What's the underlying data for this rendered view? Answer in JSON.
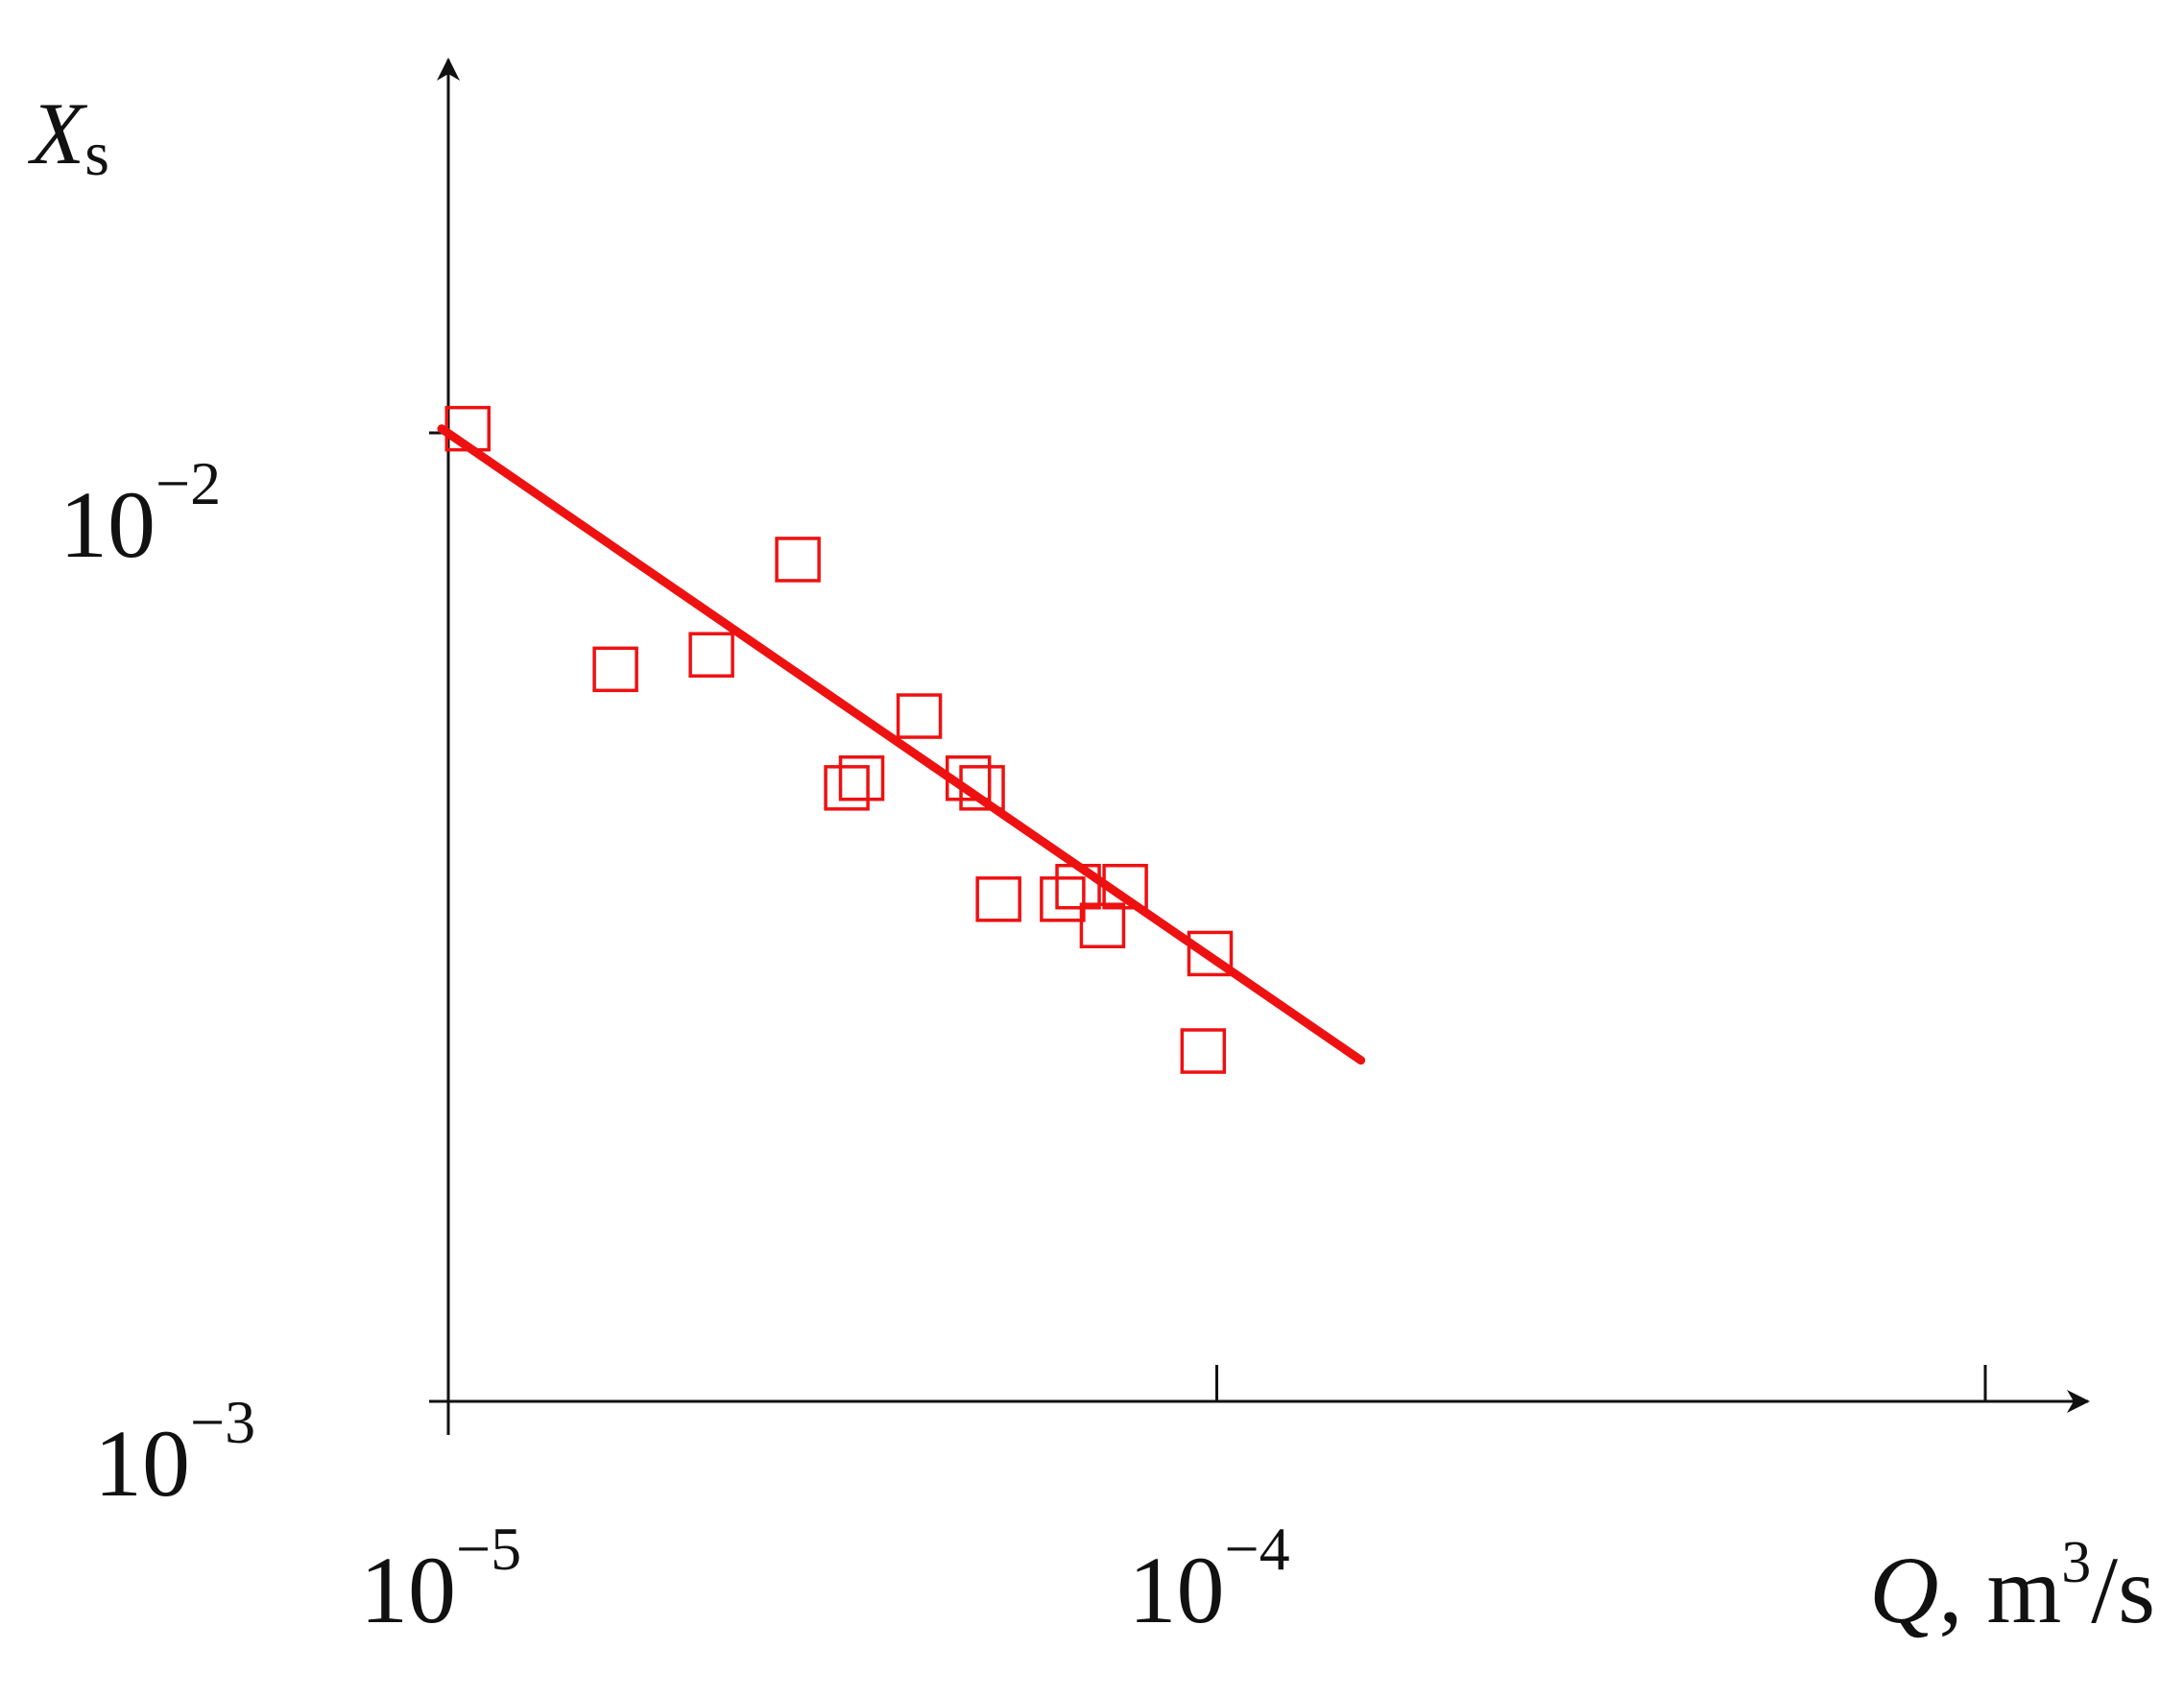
{
  "chart_data": {
    "type": "scatter",
    "title": "",
    "xlabel": {
      "symbol": "Q",
      "comma": ",",
      "unit_base": " m",
      "unit_sup": "3",
      "unit_tail": "/s"
    },
    "ylabel": {
      "symbol": "X",
      "subscript": "s"
    },
    "x_scale": "log",
    "y_scale": "log",
    "xlim": [
      1e-05,
      0.001
    ],
    "ylim": [
      0.001,
      0.0115
    ],
    "x_ticks": [
      {
        "value": 1e-05,
        "base": "10",
        "exp": "−5"
      },
      {
        "value": 0.0001,
        "base": "10",
        "exp": "−4"
      },
      {
        "value": 0.001,
        "base": "",
        "exp": ""
      }
    ],
    "y_ticks": [
      {
        "value": 0.001,
        "base": "10",
        "exp": "−3"
      },
      {
        "value": 0.01,
        "base": "10",
        "exp": "−2"
      }
    ],
    "grid": false,
    "color": "#ee1111",
    "marker": "open-square",
    "points": [
      {
        "x": 1.06e-05,
        "y": 0.0101
      },
      {
        "x": 1.65e-05,
        "y": 0.0057
      },
      {
        "x": 2.2e-05,
        "y": 0.0059
      },
      {
        "x": 2.85e-05,
        "y": 0.0074
      },
      {
        "x": 3.3e-05,
        "y": 0.0043
      },
      {
        "x": 3.45e-05,
        "y": 0.0044
      },
      {
        "x": 4.1e-05,
        "y": 0.0051
      },
      {
        "x": 4.75e-05,
        "y": 0.0044
      },
      {
        "x": 4.95e-05,
        "y": 0.0043
      },
      {
        "x": 5.2e-05,
        "y": 0.0033
      },
      {
        "x": 6.3e-05,
        "y": 0.0033
      },
      {
        "x": 6.6e-05,
        "y": 0.0034
      },
      {
        "x": 7.1e-05,
        "y": 0.0031
      },
      {
        "x": 7.6e-05,
        "y": 0.0034
      },
      {
        "x": 9.8e-05,
        "y": 0.0029
      },
      {
        "x": 9.6e-05,
        "y": 0.0023
      }
    ],
    "fit_line": {
      "x": [
        9.8e-06,
        0.000154
      ],
      "y": [
        0.0101,
        0.00225
      ]
    }
  }
}
